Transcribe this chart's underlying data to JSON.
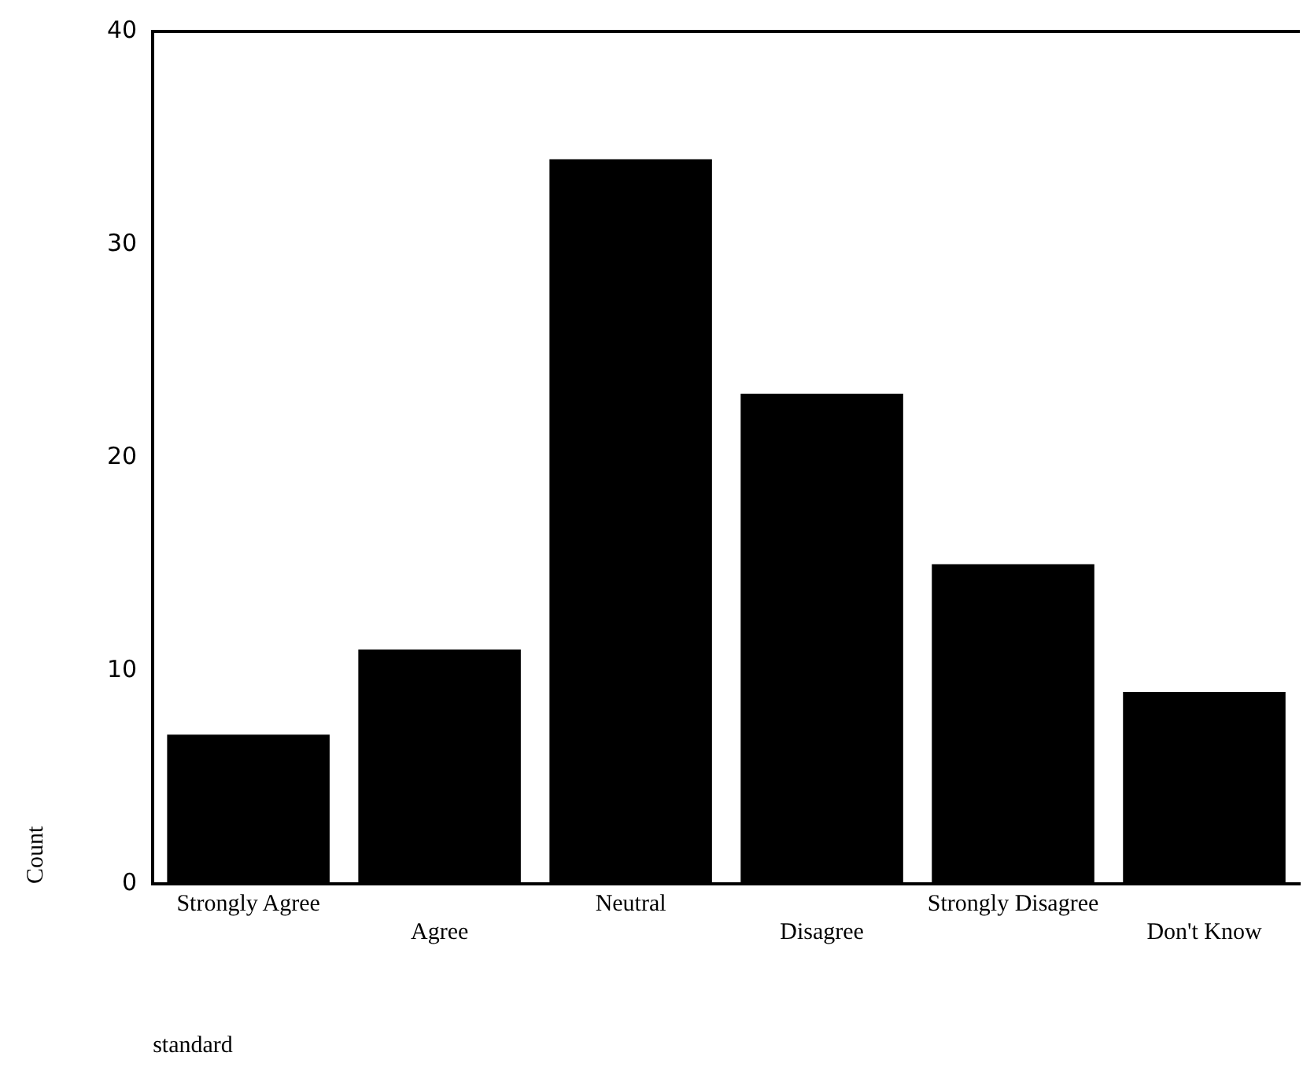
{
  "chart_data": {
    "type": "bar",
    "xlabel": "standard",
    "ylabel": "Count",
    "categories": [
      "Strongly Agree",
      "Agree",
      "Neutral",
      "Disagree",
      "Strongly Disagree",
      "Don't Know"
    ],
    "values": [
      7,
      11,
      34,
      23,
      15,
      9
    ],
    "color": "#000000",
    "ylim": [
      0,
      40
    ],
    "yticks": [
      0,
      10,
      20,
      30,
      40
    ],
    "grid": false,
    "legend": false
  }
}
